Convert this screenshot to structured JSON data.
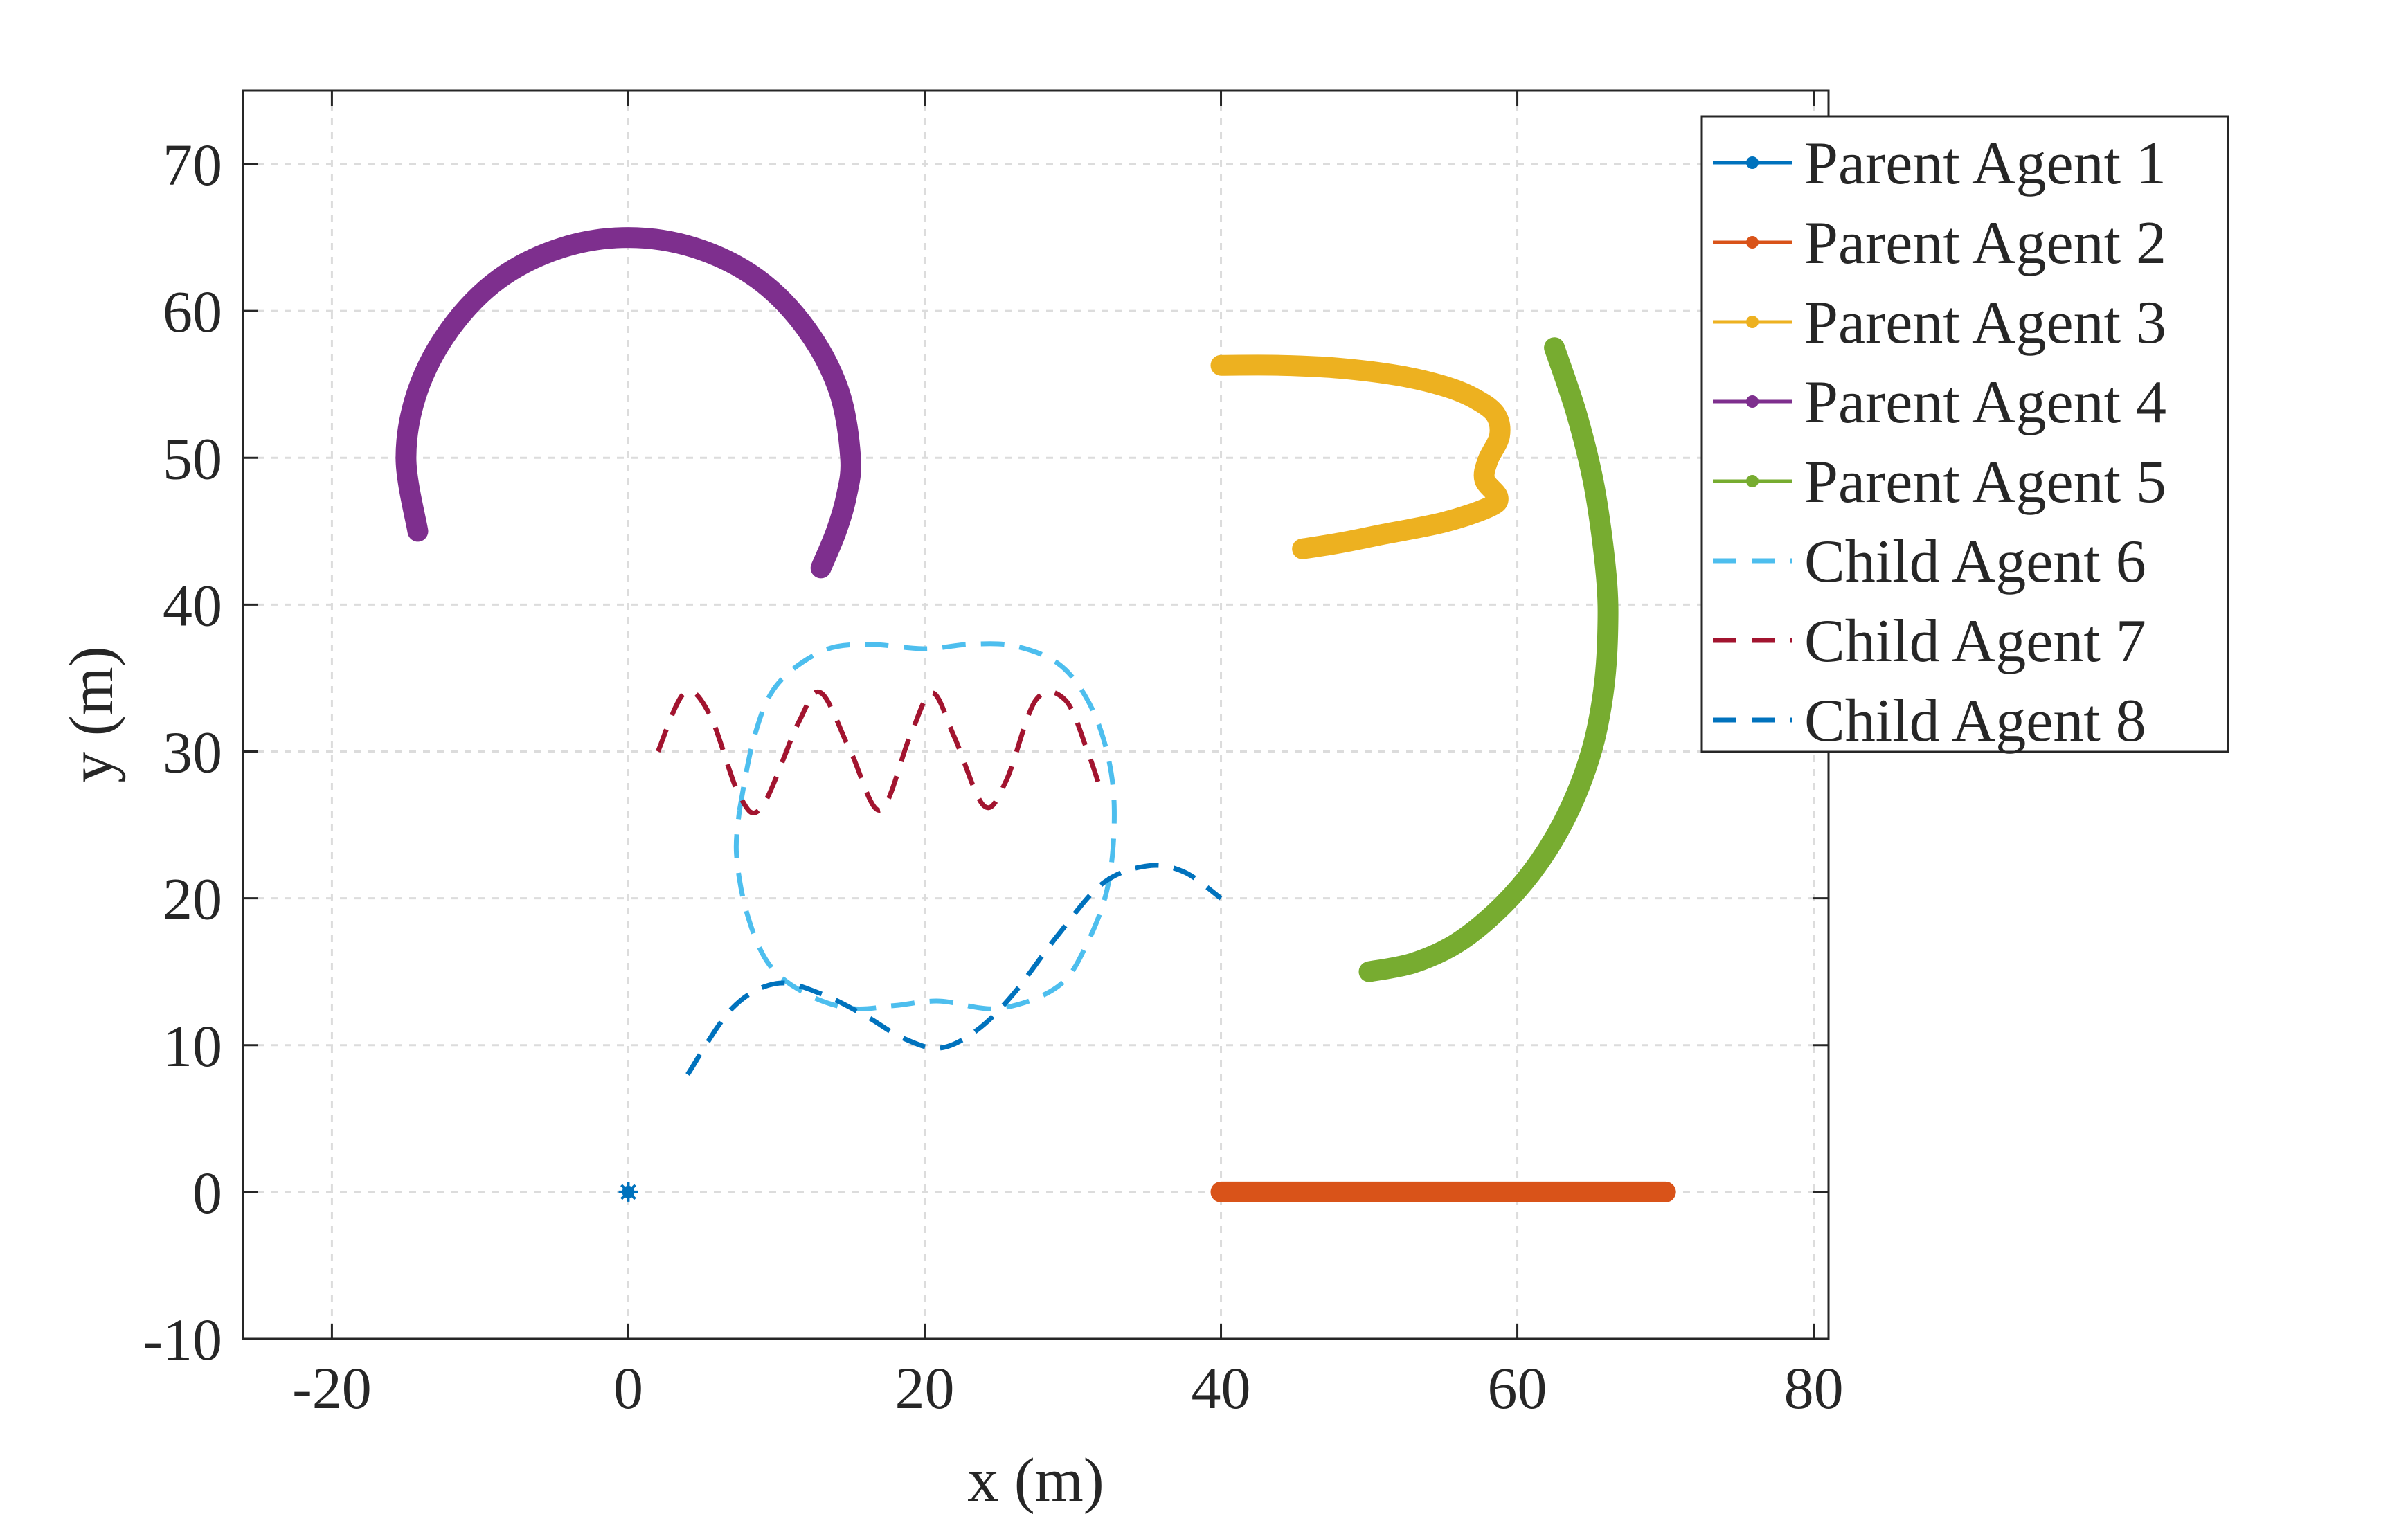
{
  "chart_data": {
    "type": "line",
    "title": "",
    "xlabel": "x (m)",
    "ylabel": "y (m)",
    "xlim": [
      -26,
      81
    ],
    "ylim": [
      -10,
      75
    ],
    "xticks": [
      -20,
      0,
      20,
      40,
      60,
      80
    ],
    "yticks": [
      -10,
      0,
      10,
      20,
      30,
      40,
      50,
      60,
      70
    ],
    "xtick_labels": [
      "-20",
      "0",
      "20",
      "40",
      "60",
      "80"
    ],
    "ytick_labels": [
      "-10",
      "0",
      "10",
      "20",
      "30",
      "40",
      "50",
      "60",
      "70"
    ],
    "grid": true,
    "legend_location": "top-right",
    "series": [
      {
        "name": "Parent Agent 1",
        "color": "#0072BD",
        "style": "solid-star",
        "x": [
          0
        ],
        "y": [
          0
        ]
      },
      {
        "name": "Parent Agent 2",
        "color": "#D95319",
        "style": "solid-star",
        "x": [
          40,
          45,
          50,
          55,
          60,
          65,
          70
        ],
        "y": [
          0,
          0,
          0,
          0,
          0,
          0,
          0
        ]
      },
      {
        "name": "Parent Agent 3",
        "color": "#EDB120",
        "style": "solid-star",
        "x": [
          40,
          44,
          48,
          52,
          55,
          57,
          58.5,
          58.8,
          58,
          57.8,
          58.7,
          58,
          55,
          51,
          48,
          45.5
        ],
        "y": [
          56.3,
          56.3,
          56.1,
          55.6,
          54.9,
          54.1,
          53,
          51.5,
          49.8,
          48.5,
          47.3,
          46.6,
          45.6,
          44.8,
          44.2,
          43.8
        ]
      },
      {
        "name": "Parent Agent 4",
        "color": "#7E2F8E",
        "style": "solid-star",
        "x": [
          -14.2,
          -15,
          -14.2,
          -12,
          -8.7,
          -4.5,
          0,
          4.5,
          8.7,
          12,
          14.2,
          15,
          14.7,
          14,
          13
        ],
        "y": [
          45,
          50,
          54.6,
          58.8,
          62.2,
          64.3,
          65,
          64.3,
          62.2,
          58.8,
          54.6,
          50,
          47.3,
          44.9,
          42.5
        ]
      },
      {
        "name": "Parent Agent 5",
        "color": "#77AC30",
        "style": "solid-star",
        "x": [
          62.5,
          64,
          65.2,
          66,
          66.1,
          65.8,
          65,
          63.5,
          61.5,
          59,
          56,
          53,
          50
        ],
        "y": [
          57.5,
          53,
          48,
          42,
          38,
          34,
          30,
          26,
          22.5,
          19.5,
          17,
          15.6,
          15
        ]
      },
      {
        "name": "Child Agent 6",
        "color": "#4DBEEE",
        "style": "dashed",
        "x": [
          7.5,
          8.5,
          10,
          13,
          16,
          20,
          23,
          26,
          29,
          31,
          32.3,
          32.8,
          32.4,
          31,
          29,
          25,
          21,
          18,
          15,
          12,
          9.5,
          8,
          7.3,
          7.5
        ],
        "y": [
          26,
          31,
          34.5,
          36.8,
          37.3,
          37,
          37.3,
          37.2,
          36,
          33.5,
          30,
          26,
          21,
          17,
          14,
          12.5,
          13,
          12.7,
          12.5,
          13.5,
          15.5,
          19,
          23,
          26
        ]
      },
      {
        "name": "Child Agent 7",
        "color": "#A2142F",
        "style": "dashed",
        "x": [
          2,
          3.8,
          5.5,
          7.5,
          9,
          11.5,
          13,
          15,
          17,
          19,
          20.5,
          22,
          24,
          25.5,
          27.5,
          29.5,
          31,
          32
        ],
        "y": [
          30,
          34,
          32.5,
          27,
          26.2,
          32,
          34,
          30,
          26,
          31,
          34,
          31,
          26.3,
          28,
          33.5,
          33.5,
          30,
          27
        ]
      },
      {
        "name": "Child Agent 8",
        "color": "#0072BD",
        "style": "dashed",
        "x": [
          4,
          7,
          10,
          13,
          16,
          18.5,
          21,
          23.5,
          26,
          29,
          32,
          35,
          37.5,
          40
        ],
        "y": [
          8,
          12.5,
          14.2,
          13.5,
          12,
          10.5,
          9.8,
          11,
          13.5,
          17.5,
          21,
          22.2,
          21.8,
          20
        ]
      }
    ]
  }
}
